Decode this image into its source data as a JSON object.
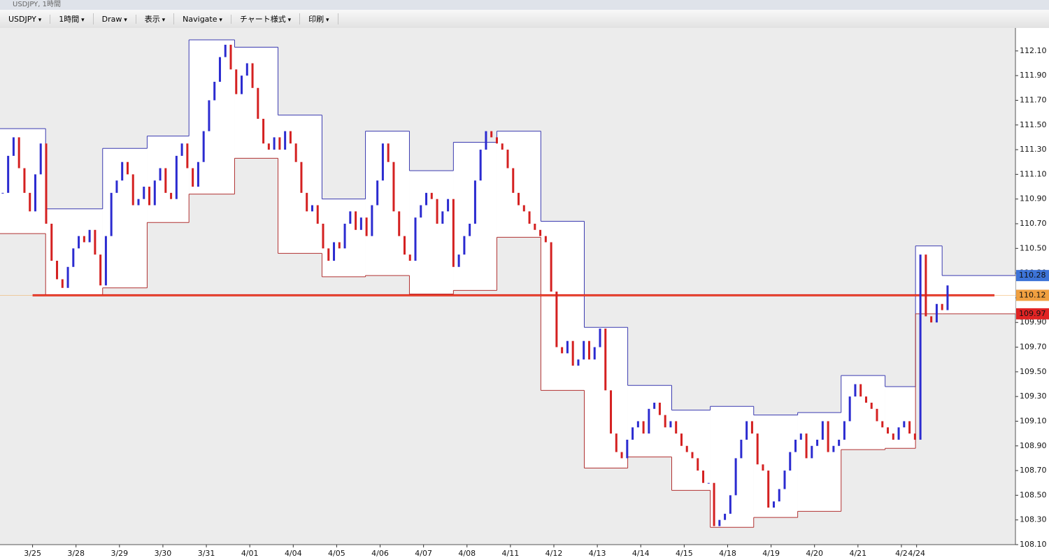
{
  "window_title": "USDJPY, 1時間",
  "toolbar": [
    "USDJPY",
    "1時間",
    "Draw",
    "表示",
    "Navigate",
    "チャート様式",
    "印刷"
  ],
  "chart_data": {
    "type": "candlestick",
    "symbol_colors": {
      "up": "#2b2bd0",
      "down": "#d42020",
      "box_high": "#3a3ab0",
      "box_low": "#b03030"
    },
    "xlim": [
      0,
      187
    ],
    "xticks": [
      {
        "value": 6,
        "label": "3/25"
      },
      {
        "value": 14,
        "label": "3/28"
      },
      {
        "value": 22,
        "label": "3/29"
      },
      {
        "value": 30,
        "label": "3/30"
      },
      {
        "value": 38,
        "label": "3/31"
      },
      {
        "value": 46,
        "label": "4/01"
      },
      {
        "value": 54,
        "label": "4/04"
      },
      {
        "value": 62,
        "label": "4/05"
      },
      {
        "value": 70,
        "label": "4/06"
      },
      {
        "value": 78,
        "label": "4/07"
      },
      {
        "value": 86,
        "label": "4/08"
      },
      {
        "value": 94,
        "label": "4/11"
      },
      {
        "value": 102,
        "label": "4/12"
      },
      {
        "value": 110,
        "label": "4/13"
      },
      {
        "value": 118,
        "label": "4/14"
      },
      {
        "value": 126,
        "label": "4/15"
      },
      {
        "value": 134,
        "label": "4/18"
      },
      {
        "value": 142,
        "label": "4/19"
      },
      {
        "value": 150,
        "label": "4/20"
      },
      {
        "value": 158,
        "label": "4/21"
      },
      {
        "value": 166,
        "label": "4/2"
      },
      {
        "value": 168.8,
        "label": "4/24"
      }
    ],
    "ylim": [
      108.1,
      112.286
    ],
    "yticks": [
      {
        "value": 108.1,
        "label": "108.10"
      },
      {
        "value": 108.3,
        "label": "108.30"
      },
      {
        "value": 108.5,
        "label": "108.50"
      },
      {
        "value": 108.7,
        "label": "108.70"
      },
      {
        "value": 108.9,
        "label": "108.90"
      },
      {
        "value": 109.1,
        "label": "109.10"
      },
      {
        "value": 109.3,
        "label": "109.30"
      },
      {
        "value": 109.5,
        "label": "109.50"
      },
      {
        "value": 109.7,
        "label": "109.70"
      },
      {
        "value": 109.9,
        "label": "109.90"
      },
      {
        "value": 110.1,
        "label": "110.10"
      },
      {
        "value": 110.3,
        "label": "110.30"
      },
      {
        "value": 110.5,
        "label": "110.50"
      },
      {
        "value": 110.7,
        "label": "110.70"
      },
      {
        "value": 110.9,
        "label": "110.90"
      },
      {
        "value": 111.1,
        "label": "111.10"
      },
      {
        "value": 111.3,
        "label": "111.30"
      },
      {
        "value": 111.5,
        "label": "111.50"
      },
      {
        "value": 111.7,
        "label": "111.70"
      },
      {
        "value": 111.9,
        "label": "111.90"
      },
      {
        "value": 112.1,
        "label": "112.10"
      }
    ],
    "close": [
      110.95,
      111.25,
      111.4,
      111.15,
      110.95,
      110.8,
      111.1,
      111.35,
      110.7,
      110.4,
      110.25,
      110.18,
      110.35,
      110.5,
      110.6,
      110.55,
      110.65,
      110.45,
      110.2,
      110.6,
      110.95,
      111.05,
      111.2,
      111.1,
      110.85,
      110.9,
      111.0,
      110.85,
      111.05,
      111.15,
      110.95,
      110.9,
      111.25,
      111.35,
      111.15,
      111.0,
      111.2,
      111.45,
      111.7,
      111.85,
      112.05,
      112.15,
      111.95,
      111.75,
      111.9,
      112.0,
      111.8,
      111.55,
      111.35,
      111.3,
      111.4,
      111.3,
      111.45,
      111.35,
      111.2,
      110.95,
      110.8,
      110.85,
      110.7,
      110.5,
      110.4,
      110.55,
      110.5,
      110.7,
      110.8,
      110.65,
      110.75,
      110.6,
      110.85,
      111.05,
      111.35,
      111.2,
      110.8,
      110.6,
      110.45,
      110.4,
      110.75,
      110.85,
      110.95,
      110.9,
      110.7,
      110.8,
      110.9,
      110.35,
      110.45,
      110.6,
      110.7,
      111.05,
      111.3,
      111.45,
      111.4,
      111.35,
      111.3,
      111.15,
      110.95,
      110.85,
      110.8,
      110.7,
      110.65,
      110.6,
      110.55,
      110.15,
      109.7,
      109.65,
      109.75,
      109.55,
      109.6,
      109.75,
      109.6,
      109.7,
      109.85,
      109.35,
      109.0,
      108.85,
      108.8,
      108.95,
      109.05,
      109.1,
      109.0,
      109.2,
      109.25,
      109.15,
      109.05,
      109.1,
      109.0,
      108.9,
      108.85,
      108.8,
      108.7,
      108.6,
      108.6,
      108.25,
      108.3,
      108.35,
      108.5,
      108.8,
      108.95,
      109.1,
      109.0,
      108.75,
      108.7,
      108.4,
      108.45,
      108.55,
      108.7,
      108.85,
      108.95,
      109.0,
      108.8,
      108.9,
      108.95,
      109.1,
      108.85,
      108.9,
      108.95,
      109.1,
      109.3,
      109.4,
      109.3,
      109.25,
      109.2,
      109.1,
      109.05,
      109.0,
      108.95,
      109.05,
      109.1,
      109.0,
      108.95,
      110.45,
      109.95,
      109.9,
      110.05,
      110.0,
      110.2
    ],
    "day_boxes": {
      "start": [
        0,
        8.4,
        18.9,
        27.1,
        34.8,
        43.2,
        51.2,
        59.3,
        67.3,
        75.4,
        83.5,
        91.5,
        99.6,
        107.6,
        115.6,
        123.7,
        130.8,
        138.8,
        146.9,
        154.9,
        163,
        168.6,
        173.5
      ],
      "end": [
        8.4,
        18.9,
        27.1,
        34.8,
        43.2,
        51.2,
        59.3,
        67.3,
        75.4,
        83.5,
        91.5,
        99.6,
        107.6,
        115.6,
        123.7,
        130.8,
        138.8,
        146.9,
        154.9,
        163,
        168.6,
        173.5,
        187
      ],
      "high": [
        111.47,
        110.82,
        111.31,
        111.41,
        112.19,
        112.13,
        111.58,
        110.9,
        111.45,
        111.13,
        111.36,
        111.45,
        110.72,
        109.86,
        109.39,
        109.19,
        109.22,
        109.15,
        109.17,
        109.47,
        109.38,
        110.52,
        110.28
      ],
      "low": [
        110.62,
        110.12,
        110.18,
        110.71,
        110.94,
        111.23,
        110.46,
        110.27,
        110.28,
        110.13,
        110.16,
        110.59,
        109.35,
        108.72,
        108.81,
        108.54,
        108.24,
        108.32,
        108.37,
        108.87,
        108.88,
        109.97,
        109.97
      ]
    },
    "horizontal_line": {
      "value": 110.12,
      "color": "#e02020"
    },
    "price_labels": [
      {
        "value": 110.28,
        "label": "110.28",
        "color": "#3d74d8"
      },
      {
        "value": 110.12,
        "label": "110.12",
        "color": "#f0a040"
      },
      {
        "value": 109.97,
        "label": "109.97",
        "color": "#e02424"
      }
    ]
  }
}
